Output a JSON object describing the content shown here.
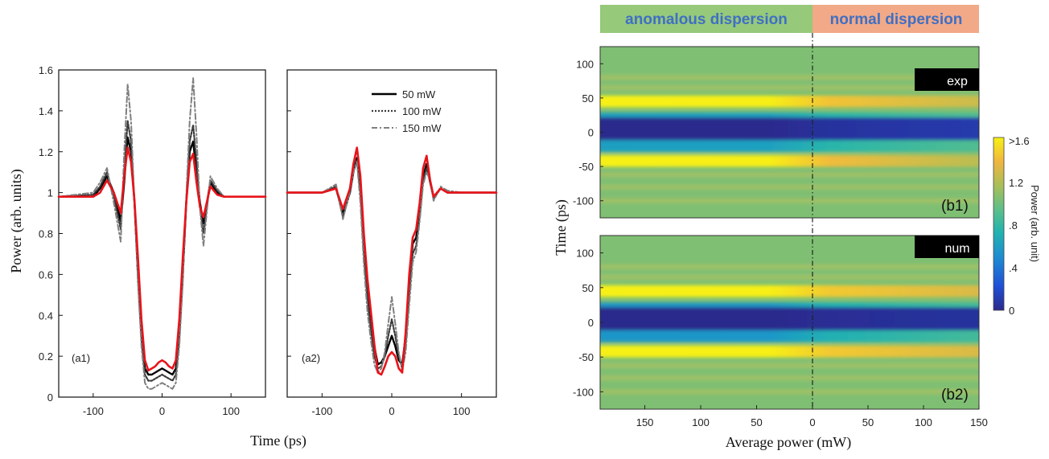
{
  "panel_a": {
    "ylabel": "Power (arb. units)",
    "xlabel": "Time (ps)",
    "xticks": [
      "-100",
      "0",
      "100"
    ],
    "yticks": [
      "0",
      "0.2",
      "0.4",
      "0.6",
      "0.8",
      "1",
      "1.2",
      "1.4",
      "1.6"
    ],
    "a1_label": "(a1)",
    "a2_label": "(a2)",
    "legend": [
      "50 mW",
      "100 mW",
      "150 mW"
    ]
  },
  "panel_b": {
    "banner_left": "anomalous dispersion",
    "banner_right": "normal dispersion",
    "banner_left_color": "#96c97a",
    "banner_right_color": "#f2a987",
    "ylabel": "Time (ps)",
    "xlabel": "Average power (mW)",
    "yticks": [
      "100",
      "50",
      "0",
      "-50",
      "-100"
    ],
    "xticks": [
      "150",
      "100",
      "50",
      "0",
      "50",
      "100",
      "150"
    ],
    "tag_exp": "exp",
    "tag_num": "num",
    "b1_label": "(b1)",
    "b2_label": "(b2)",
    "colorbar_title": "Power (arb. unit)",
    "colorbar_ticks": [
      ">1.6",
      "1.2",
      ".8",
      ".4",
      "0"
    ]
  },
  "chart_data": [
    {
      "type": "line",
      "panel": "a1",
      "xlabel": "Time (ps)",
      "ylabel": "Power (arb. units)",
      "xlim": [
        -150,
        150
      ],
      "ylim": [
        0,
        1.6
      ],
      "grid": false,
      "series": [
        {
          "name": "50 mW",
          "color": "#000000",
          "style": "solid",
          "x": [
            -150,
            -100,
            -90,
            -80,
            -70,
            -60,
            -55,
            -50,
            -45,
            -40,
            -35,
            -30,
            -25,
            -20,
            -15,
            -10,
            -5,
            0,
            5,
            10,
            15,
            20,
            25,
            30,
            35,
            40,
            45,
            50,
            55,
            60,
            70,
            80,
            90,
            100,
            150
          ],
          "y": [
            0.98,
            0.98,
            1.02,
            1.08,
            1.0,
            0.86,
            1.05,
            1.27,
            1.2,
            0.95,
            0.6,
            0.3,
            0.14,
            0.11,
            0.11,
            0.12,
            0.13,
            0.14,
            0.13,
            0.12,
            0.11,
            0.14,
            0.3,
            0.6,
            0.95,
            1.2,
            1.25,
            1.1,
            0.95,
            0.85,
            1.05,
            1.0,
            0.98,
            0.98,
            0.98
          ]
        },
        {
          "name": "100 mW",
          "color": "#3a3a3a",
          "style": "dotted",
          "x": [
            -150,
            -100,
            -90,
            -80,
            -70,
            -60,
            -55,
            -50,
            -45,
            -40,
            -35,
            -30,
            -25,
            -20,
            -15,
            -10,
            -5,
            0,
            5,
            10,
            15,
            20,
            25,
            30,
            35,
            40,
            45,
            50,
            55,
            60,
            70,
            80,
            90,
            100,
            150
          ],
          "y": [
            0.98,
            0.99,
            1.03,
            1.1,
            0.98,
            0.82,
            1.1,
            1.35,
            1.25,
            0.95,
            0.58,
            0.28,
            0.11,
            0.08,
            0.08,
            0.09,
            0.1,
            0.11,
            0.1,
            0.09,
            0.08,
            0.11,
            0.28,
            0.58,
            0.96,
            1.25,
            1.33,
            1.15,
            0.93,
            0.8,
            1.06,
            1.01,
            0.98,
            0.98,
            0.98
          ]
        },
        {
          "name": "150 mW",
          "color": "#7f7f7f",
          "style": "dashdot",
          "x": [
            -150,
            -100,
            -90,
            -80,
            -70,
            -60,
            -55,
            -50,
            -45,
            -40,
            -35,
            -30,
            -25,
            -20,
            -15,
            -10,
            -5,
            0,
            5,
            10,
            15,
            20,
            25,
            30,
            35,
            40,
            45,
            50,
            55,
            60,
            70,
            80,
            90,
            100,
            150
          ],
          "y": [
            0.98,
            1.0,
            1.05,
            1.12,
            0.95,
            0.76,
            1.2,
            1.53,
            1.35,
            0.95,
            0.56,
            0.25,
            0.07,
            0.04,
            0.04,
            0.05,
            0.06,
            0.07,
            0.06,
            0.05,
            0.04,
            0.07,
            0.25,
            0.56,
            0.98,
            1.35,
            1.56,
            1.28,
            0.92,
            0.74,
            1.08,
            1.02,
            0.98,
            0.98,
            0.98
          ]
        },
        {
          "name": "",
          "color": "#e8141a",
          "style": "solid",
          "x": [
            -150,
            -100,
            -90,
            -80,
            -70,
            -60,
            -55,
            -50,
            -45,
            -40,
            -35,
            -30,
            -25,
            -20,
            -15,
            -10,
            -5,
            0,
            5,
            10,
            15,
            20,
            25,
            30,
            35,
            40,
            45,
            50,
            55,
            60,
            70,
            80,
            90,
            100,
            150
          ],
          "y": [
            0.98,
            0.98,
            1.0,
            1.06,
            1.0,
            0.9,
            1.08,
            1.22,
            1.15,
            0.96,
            0.68,
            0.38,
            0.18,
            0.13,
            0.14,
            0.15,
            0.17,
            0.18,
            0.17,
            0.15,
            0.14,
            0.18,
            0.38,
            0.68,
            0.95,
            1.15,
            1.19,
            1.05,
            0.93,
            0.88,
            1.03,
            0.99,
            0.98,
            0.98,
            0.98
          ]
        }
      ]
    },
    {
      "type": "line",
      "panel": "a2",
      "xlabel": "Time (ps)",
      "xlim": [
        -150,
        150
      ],
      "ylim": [
        0,
        1.6
      ],
      "grid": false,
      "legend_position": "top-right",
      "series": [
        {
          "name": "50 mW",
          "color": "#000000",
          "style": "solid",
          "x": [
            -150,
            -100,
            -80,
            -70,
            -60,
            -55,
            -50,
            -45,
            -40,
            -35,
            -30,
            -25,
            -20,
            -15,
            -10,
            -5,
            0,
            5,
            10,
            15,
            20,
            25,
            30,
            35,
            40,
            45,
            50,
            55,
            60,
            70,
            80,
            100,
            150
          ],
          "y": [
            1.0,
            1.0,
            1.02,
            0.9,
            1.0,
            1.1,
            1.17,
            1.05,
            0.78,
            0.55,
            0.4,
            0.25,
            0.16,
            0.17,
            0.2,
            0.25,
            0.3,
            0.25,
            0.18,
            0.16,
            0.3,
            0.55,
            0.75,
            0.78,
            0.9,
            1.08,
            1.14,
            1.05,
            0.98,
            1.02,
            1.0,
            1.0,
            1.0
          ]
        },
        {
          "name": "100 mW",
          "color": "#3a3a3a",
          "style": "dotted",
          "x": [
            -150,
            -100,
            -80,
            -70,
            -60,
            -55,
            -50,
            -45,
            -40,
            -35,
            -30,
            -25,
            -20,
            -15,
            -10,
            -5,
            0,
            5,
            10,
            15,
            20,
            25,
            30,
            35,
            40,
            45,
            50,
            55,
            60,
            70,
            80,
            100,
            150
          ],
          "y": [
            1.0,
            1.0,
            1.03,
            0.88,
            1.0,
            1.1,
            1.16,
            1.0,
            0.7,
            0.48,
            0.33,
            0.2,
            0.14,
            0.15,
            0.2,
            0.3,
            0.38,
            0.3,
            0.2,
            0.14,
            0.26,
            0.5,
            0.7,
            0.74,
            0.88,
            1.06,
            1.12,
            1.05,
            0.97,
            1.02,
            1.0,
            1.0,
            1.0
          ]
        },
        {
          "name": "150 mW",
          "color": "#7f7f7f",
          "style": "dashdot",
          "x": [
            -150,
            -100,
            -80,
            -70,
            -60,
            -55,
            -50,
            -45,
            -40,
            -35,
            -30,
            -25,
            -20,
            -15,
            -10,
            -5,
            0,
            5,
            10,
            15,
            20,
            25,
            30,
            35,
            40,
            45,
            50,
            55,
            60,
            70,
            80,
            100,
            150
          ],
          "y": [
            1.0,
            1.0,
            1.04,
            0.87,
            1.01,
            1.1,
            1.15,
            0.95,
            0.65,
            0.42,
            0.28,
            0.16,
            0.12,
            0.14,
            0.22,
            0.36,
            0.49,
            0.36,
            0.22,
            0.13,
            0.22,
            0.45,
            0.66,
            0.71,
            0.86,
            1.04,
            1.1,
            1.06,
            0.96,
            1.03,
            1.01,
            1.0,
            1.0
          ]
        },
        {
          "name": "",
          "color": "#e8141a",
          "style": "solid",
          "x": [
            -150,
            -100,
            -80,
            -70,
            -60,
            -55,
            -50,
            -45,
            -40,
            -35,
            -30,
            -25,
            -20,
            -15,
            -10,
            -5,
            0,
            5,
            10,
            15,
            20,
            25,
            30,
            35,
            40,
            45,
            50,
            55,
            60,
            70,
            80,
            100,
            150
          ],
          "y": [
            1.0,
            1.0,
            1.02,
            0.92,
            1.02,
            1.14,
            1.22,
            1.08,
            0.8,
            0.58,
            0.42,
            0.26,
            0.12,
            0.11,
            0.15,
            0.2,
            0.22,
            0.2,
            0.14,
            0.12,
            0.32,
            0.6,
            0.78,
            0.82,
            0.95,
            1.12,
            1.18,
            1.06,
            0.98,
            1.02,
            1.0,
            1.0,
            1.0
          ]
        }
      ]
    },
    {
      "type": "heatmap",
      "panel": "b1",
      "tag": "exp",
      "xlabel": "Average power (mW)",
      "ylabel": "Time (ps)",
      "x_regions": [
        {
          "label": "anomalous dispersion",
          "x": [
            190,
            0
          ]
        },
        {
          "label": "normal dispersion",
          "x": [
            0,
            150
          ]
        }
      ],
      "ylim": [
        -125,
        125
      ],
      "colorbar_range": [
        0,
        1.6
      ],
      "features": [
        {
          "time_ps": 45,
          "power_anomalous": 1.6,
          "power_normal": 1.25
        },
        {
          "time_ps": 20,
          "power_anomalous": 0.6,
          "power_normal": 0.9
        },
        {
          "time_ps": 10,
          "power_anomalous": 0.0,
          "power_normal": 0.1
        },
        {
          "time_ps": -10,
          "power_anomalous": 0.0,
          "power_normal": 0.1
        },
        {
          "time_ps": -20,
          "power_anomalous": 0.6,
          "power_normal": 0.9
        },
        {
          "time_ps": -42,
          "power_anomalous": 1.6,
          "power_normal": 1.2
        }
      ]
    },
    {
      "type": "heatmap",
      "panel": "b2",
      "tag": "num",
      "xlabel": "Average power (mW)",
      "ylabel": "Time (ps)",
      "x_regions": [
        {
          "label": "anomalous dispersion",
          "x": [
            190,
            0
          ]
        },
        {
          "label": "normal dispersion",
          "x": [
            0,
            150
          ]
        }
      ],
      "ylim": [
        -125,
        125
      ],
      "colorbar_range": [
        0,
        1.6
      ],
      "features": [
        {
          "time_ps": 45,
          "power_anomalous": 1.6,
          "power_normal": 1.3
        },
        {
          "time_ps": 20,
          "power_anomalous": 0.55,
          "power_normal": 0.85
        },
        {
          "time_ps": 10,
          "power_anomalous": 0.0,
          "power_normal": 0.05
        },
        {
          "time_ps": -10,
          "power_anomalous": 0.0,
          "power_normal": 0.05
        },
        {
          "time_ps": -20,
          "power_anomalous": 0.55,
          "power_normal": 0.85
        },
        {
          "time_ps": -42,
          "power_anomalous": 1.6,
          "power_normal": 1.3
        }
      ]
    }
  ]
}
